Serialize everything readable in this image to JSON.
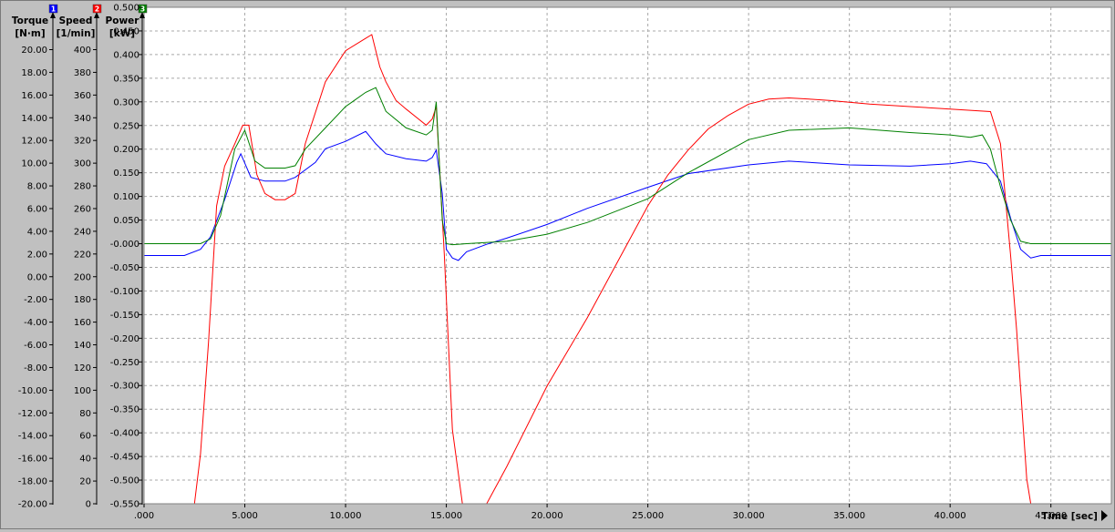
{
  "chart_data": {
    "type": "line",
    "xlabel": "Time [sec]",
    "xlim": [
      0,
      48
    ],
    "xticks": [
      0,
      5,
      10,
      15,
      20,
      25,
      30,
      35,
      40,
      45
    ],
    "xtick_labels": [
      ".000",
      "5.000",
      "10.000",
      "15.000",
      "20.000",
      "25.000",
      "30.000",
      "35.000",
      "40.000",
      "45.000"
    ],
    "grid": true,
    "axes": [
      {
        "id": "1",
        "name": "Torque",
        "unit": "[N·m]",
        "color": "#0000ff",
        "ylim": [
          -20,
          20
        ],
        "tick_labels": [
          "20.00",
          "18.00",
          "16.00",
          "14.00",
          "12.00",
          "10.00",
          "8.00",
          "6.00",
          "4.00",
          "2.00",
          "0.00",
          "-2.00",
          "-4.00",
          "-6.00",
          "-8.00",
          "-10.00",
          "-12.00",
          "-14.00",
          "-16.00",
          "-18.00",
          "-20.00"
        ]
      },
      {
        "id": "2",
        "name": "Speed",
        "unit": "[1/min]",
        "color": "#ff0000",
        "ylim": [
          0,
          400
        ],
        "tick_labels": [
          "400",
          "380",
          "360",
          "340",
          "320",
          "300",
          "280",
          "260",
          "240",
          "220",
          "200",
          "180",
          "160",
          "140",
          "120",
          "100",
          "80",
          "60",
          "40",
          "20",
          "0"
        ]
      },
      {
        "id": "3",
        "name": "Power",
        "unit": "[kW]",
        "color": "#008000",
        "ylim": [
          -0.55,
          0.5
        ],
        "tick_labels": [
          "0.500",
          "0.450",
          "0.400",
          "0.350",
          "0.300",
          "0.250",
          "0.200",
          "0.150",
          "0.100",
          "0.050",
          "-0.000",
          "-0.050",
          "-0.100",
          "-0.150",
          "-0.200",
          "-0.250",
          "-0.300",
          "-0.350",
          "-0.400",
          "-0.450",
          "-0.500",
          "-0.550"
        ]
      }
    ],
    "series": [
      {
        "axis": "1",
        "color": "#0000ff",
        "x": [
          0,
          1,
          2,
          2.8,
          3.3,
          4,
          4.6,
          4.8,
          5.3,
          6,
          7,
          7.5,
          8.5,
          9,
          10,
          11,
          11.5,
          12,
          13,
          14,
          14.3,
          14.5,
          14.8,
          15,
          15.3,
          15.6,
          16,
          17,
          18,
          20,
          22,
          25,
          27,
          30,
          32,
          35,
          38,
          40,
          41,
          41.8,
          42.5,
          43,
          43.5,
          44,
          44.5,
          46,
          48
        ],
        "y": [
          0,
          0,
          0,
          0.5,
          1.5,
          4.5,
          7.5,
          8.2,
          6.3,
          6.0,
          6.0,
          6.3,
          7.5,
          8.6,
          9.2,
          10.0,
          9.0,
          8.2,
          7.8,
          7.6,
          7.9,
          8.5,
          5.0,
          0.5,
          -0.2,
          -0.4,
          0.3,
          0.9,
          1.4,
          2.5,
          3.8,
          5.5,
          6.6,
          7.3,
          7.6,
          7.3,
          7.2,
          7.4,
          7.6,
          7.4,
          6.0,
          3.0,
          0.5,
          -0.2,
          0,
          0,
          0
        ]
      },
      {
        "axis": "2",
        "color": "#ff0000",
        "x": [
          0,
          2.5,
          2.8,
          3.2,
          3.6,
          4,
          4.5,
          4.9,
          5.2,
          5.6,
          6,
          6.5,
          7,
          7.5,
          8,
          9,
          10,
          11,
          11.3,
          11.7,
          12,
          12.5,
          13,
          14,
          14.3,
          14.5,
          14.9,
          15.3,
          15.8,
          16.2,
          17,
          18,
          20,
          22,
          24,
          25,
          26,
          27,
          28,
          29,
          30,
          31,
          32,
          33,
          34,
          36,
          38,
          40,
          41,
          42,
          42.5,
          43,
          43.3,
          43.8,
          44,
          44.5,
          48
        ],
        "y": [
          0,
          0,
          40,
          130,
          240,
          272,
          290,
          305,
          305,
          265,
          250,
          245,
          245,
          250,
          290,
          340,
          365,
          375,
          378,
          352,
          340,
          325,
          318,
          305,
          310,
          320,
          200,
          60,
          0,
          0,
          0,
          30,
          95,
          150,
          210,
          240,
          265,
          285,
          302,
          313,
          322,
          326,
          327,
          326,
          325,
          322,
          320,
          318,
          317,
          316,
          290,
          200,
          140,
          20,
          0,
          0,
          0
        ]
      },
      {
        "axis": "3",
        "color": "#008000",
        "x": [
          0,
          1,
          2,
          2.8,
          3.3,
          3.8,
          4.5,
          5,
          5.5,
          6,
          7,
          7.5,
          8,
          9,
          10,
          10.5,
          11,
          11.5,
          12,
          13,
          14,
          14.3,
          14.5,
          14.8,
          15,
          15.3,
          16,
          18,
          20,
          22,
          25,
          27,
          30,
          32,
          35,
          38,
          40,
          41,
          41.6,
          42,
          42.5,
          43,
          43.5,
          44,
          46,
          48
        ],
        "y": [
          0,
          0,
          0,
          0,
          0.01,
          0.06,
          0.2,
          0.24,
          0.175,
          0.16,
          0.16,
          0.165,
          0.2,
          0.245,
          0.29,
          0.305,
          0.32,
          0.33,
          0.28,
          0.245,
          0.23,
          0.24,
          0.3,
          0.05,
          0,
          -0.002,
          0,
          0.005,
          0.02,
          0.045,
          0.095,
          0.15,
          0.22,
          0.24,
          0.245,
          0.235,
          0.23,
          0.225,
          0.23,
          0.2,
          0.12,
          0.05,
          0.005,
          0,
          0,
          0
        ]
      }
    ]
  }
}
